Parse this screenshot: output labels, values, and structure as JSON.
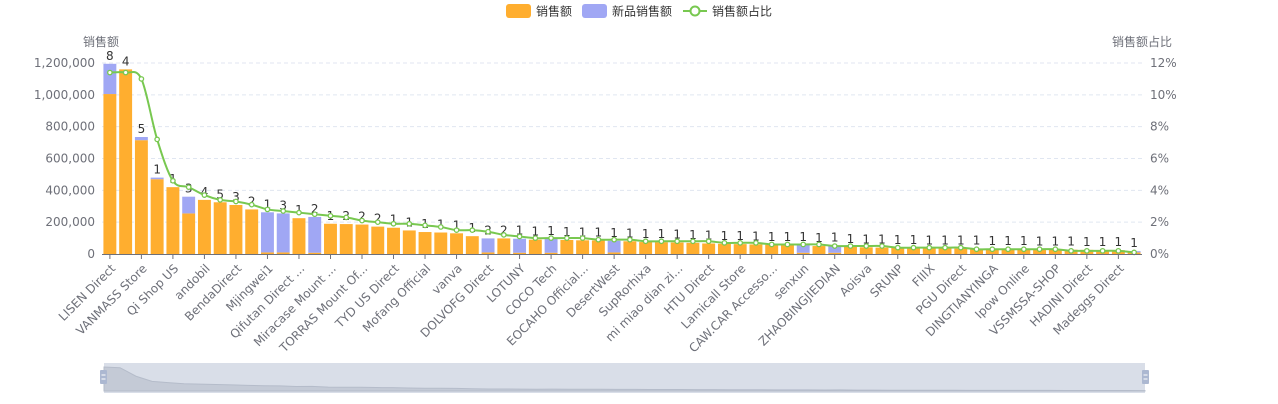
{
  "colors": {
    "sales": "#FFAE2F",
    "new_sales": "#A0A7F4",
    "ratio_line": "#78C850",
    "grid": "#E0E6F1",
    "axis_text": "#6E7079",
    "zoom_bg": "#D9DEE8"
  },
  "chart_data": {
    "type": "bar",
    "legend": {
      "position": "top-center",
      "items": [
        "销售额",
        "新品销售额",
        "销售额占比"
      ]
    },
    "y_left": {
      "label": "销售额",
      "min": 0,
      "max": 1200000,
      "ticks": [
        "0",
        "200,000",
        "400,000",
        "600,000",
        "800,000",
        "1,000,000",
        "1,200,000"
      ]
    },
    "y_right": {
      "label": "销售额占比",
      "min": 0,
      "max": 12,
      "ticks": [
        "0%",
        "2%",
        "4%",
        "6%",
        "8%",
        "10%",
        "12%"
      ]
    },
    "grid": true,
    "x_labels": [
      {
        "i": 0,
        "text": "LISEN Direct"
      },
      {
        "i": 2,
        "text": "VANMASS Store"
      },
      {
        "i": 4,
        "text": "Qi Shop US"
      },
      {
        "i": 6,
        "text": "andobil"
      },
      {
        "i": 8,
        "text": "BendaDirect"
      },
      {
        "i": 10,
        "text": "Mjingwei1"
      },
      {
        "i": 12,
        "text": "Qifutan Direct ..."
      },
      {
        "i": 14,
        "text": "Miracase Mount ..."
      },
      {
        "i": 16,
        "text": "TORRAS Mount Of..."
      },
      {
        "i": 18,
        "text": "TYD US Direct"
      },
      {
        "i": 20,
        "text": "Mofang Official"
      },
      {
        "i": 22,
        "text": "vanva"
      },
      {
        "i": 24,
        "text": "DOLVOFG Direct"
      },
      {
        "i": 26,
        "text": "LOTUNY"
      },
      {
        "i": 28,
        "text": "COCO Tech"
      },
      {
        "i": 30,
        "text": "EOCAHO Official..."
      },
      {
        "i": 32,
        "text": "DesertWest"
      },
      {
        "i": 34,
        "text": "SupRorhixa"
      },
      {
        "i": 36,
        "text": "mi miao dian zi..."
      },
      {
        "i": 38,
        "text": "HTU Direct"
      },
      {
        "i": 40,
        "text": "Lamicall Store"
      },
      {
        "i": 42,
        "text": "CAW.CAR Accesso..."
      },
      {
        "i": 44,
        "text": "senxun"
      },
      {
        "i": 46,
        "text": "ZHAOBINGJIEDIAN"
      },
      {
        "i": 48,
        "text": "Aoisva"
      },
      {
        "i": 50,
        "text": "SRUNP"
      },
      {
        "i": 52,
        "text": "FIIIX"
      },
      {
        "i": 54,
        "text": "PGU Direct"
      },
      {
        "i": 56,
        "text": "DINGTIANYINGA"
      },
      {
        "i": 58,
        "text": "Ipow Online"
      },
      {
        "i": 60,
        "text": "VSSMSSA-SHOP"
      },
      {
        "i": 62,
        "text": "HADINI Direct"
      },
      {
        "i": 64,
        "text": "Madeggs Direct"
      }
    ],
    "series": [
      {
        "name": "销售额",
        "values": [
          1005000,
          1160000,
          715000,
          470000,
          420000,
          255000,
          340000,
          325000,
          308000,
          280000,
          10000,
          10000,
          225000,
          8000,
          190000,
          188000,
          185000,
          172000,
          165000,
          148000,
          138000,
          135000,
          130000,
          112000,
          10000,
          98000,
          8000,
          90000,
          8000,
          88000,
          86000,
          85000,
          10000,
          80000,
          75000,
          74000,
          72000,
          70000,
          66000,
          64000,
          62000,
          60000,
          58000,
          56000,
          8000,
          50000,
          8000,
          45000,
          42000,
          40000,
          38000,
          37000,
          36000,
          35000,
          34000,
          33000,
          32000,
          31000,
          30000,
          29000,
          28000,
          27000,
          26000,
          25000,
          24000,
          10000
        ]
      },
      {
        "name": "新品销售额",
        "values": [
          190000,
          0,
          20000,
          10000,
          0,
          105000,
          0,
          0,
          0,
          0,
          252000,
          245000,
          0,
          225000,
          0,
          0,
          0,
          0,
          0,
          0,
          0,
          0,
          0,
          0,
          88000,
          0,
          88000,
          0,
          87000,
          0,
          0,
          0,
          73000,
          0,
          0,
          0,
          0,
          0,
          0,
          0,
          0,
          0,
          0,
          0,
          50000,
          0,
          45000,
          0,
          0,
          0,
          0,
          0,
          0,
          0,
          0,
          0,
          0,
          0,
          0,
          0,
          0,
          0,
          0,
          0,
          0,
          8000
        ]
      },
      {
        "name": "销售额占比",
        "values": [
          11.4,
          11.4,
          11.0,
          7.2,
          4.6,
          4.2,
          3.7,
          3.4,
          3.3,
          3.1,
          2.8,
          2.7,
          2.6,
          2.5,
          2.4,
          2.3,
          2.1,
          2.0,
          1.9,
          1.9,
          1.8,
          1.7,
          1.5,
          1.5,
          1.4,
          1.2,
          1.1,
          1.0,
          1.0,
          1.0,
          1.0,
          0.9,
          0.9,
          0.9,
          0.8,
          0.8,
          0.8,
          0.8,
          0.8,
          0.7,
          0.7,
          0.7,
          0.6,
          0.6,
          0.6,
          0.6,
          0.5,
          0.5,
          0.5,
          0.5,
          0.4,
          0.4,
          0.4,
          0.4,
          0.4,
          0.3,
          0.3,
          0.3,
          0.3,
          0.3,
          0.3,
          0.2,
          0.2,
          0.2,
          0.2,
          0.1
        ]
      }
    ],
    "bar_top_labels": [
      8,
      4,
      5,
      1,
      1,
      3,
      4,
      5,
      3,
      2,
      1,
      3,
      1,
      2,
      1,
      2,
      2,
      2,
      1,
      1,
      1,
      1,
      1,
      1,
      2,
      2,
      1,
      1,
      1,
      1,
      1,
      1,
      1,
      1,
      1,
      1,
      1,
      1,
      1,
      1,
      1,
      1,
      1,
      1,
      1,
      1,
      1,
      1,
      1,
      1,
      1,
      1,
      1,
      1,
      1,
      1,
      1,
      1,
      1,
      1,
      1,
      1,
      1,
      1,
      1,
      1
    ]
  }
}
